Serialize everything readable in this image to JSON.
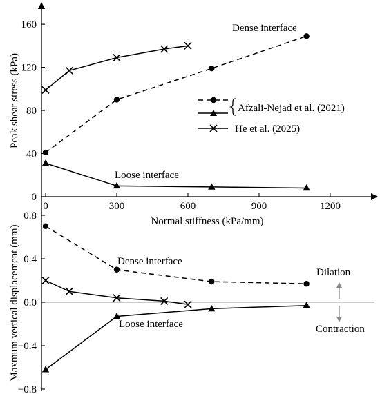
{
  "chart_data": [
    {
      "type": "line",
      "panel": "top",
      "ylabel": "Peak shear stress (kPa)",
      "xlabel": "Normal stiffness (kPa/mm)",
      "xlim": [
        0,
        1400
      ],
      "ylim": [
        0,
        175
      ],
      "xticks": [
        0,
        300,
        600,
        900,
        1200
      ],
      "yticks": [
        0,
        40,
        80,
        120,
        160
      ],
      "series": [
        {
          "key": "dense",
          "marker": "circle",
          "style": "dashed",
          "x": [
            0,
            300,
            700,
            1100
          ],
          "y": [
            41,
            90,
            119,
            149
          ]
        },
        {
          "key": "loose",
          "marker": "triangle",
          "style": "solid",
          "x": [
            0,
            300,
            700,
            1100
          ],
          "y": [
            31,
            10,
            9,
            8
          ]
        },
        {
          "key": "he",
          "marker": "cross",
          "style": "solid",
          "x": [
            0,
            100,
            300,
            500,
            600
          ],
          "y": [
            99,
            117,
            129,
            137,
            140
          ]
        }
      ],
      "annotations": [
        {
          "key": "dense",
          "text": "Dense interface"
        },
        {
          "key": "loose",
          "text": "Loose interface"
        }
      ]
    },
    {
      "type": "line",
      "panel": "bottom",
      "ylabel": "Maxmum vertical displacement (mm)",
      "xlim": [
        0,
        1400
      ],
      "ylim": [
        -0.8,
        0.8
      ],
      "yticks": [
        -0.8,
        -0.4,
        0.0,
        0.4,
        0.8
      ],
      "series": [
        {
          "key": "dense",
          "marker": "circle",
          "style": "dashed",
          "x": [
            0,
            300,
            700,
            1100
          ],
          "y": [
            0.7,
            0.3,
            0.19,
            0.17
          ]
        },
        {
          "key": "loose",
          "marker": "triangle",
          "style": "solid",
          "x": [
            0,
            300,
            700,
            1100
          ],
          "y": [
            -0.62,
            -0.13,
            -0.06,
            -0.03
          ]
        },
        {
          "key": "he",
          "marker": "cross",
          "style": "solid",
          "x": [
            0,
            100,
            300,
            500,
            600
          ],
          "y": [
            0.2,
            0.1,
            0.04,
            0.01,
            -0.02
          ]
        }
      ],
      "annotations": [
        {
          "key": "dense",
          "text": "Dense interface"
        },
        {
          "key": "loose",
          "text": "Loose interface"
        },
        {
          "key": "dilation",
          "text": "Dilation"
        },
        {
          "key": "contraction",
          "text": "Contraction"
        }
      ]
    }
  ],
  "legend": {
    "placement": "center-right",
    "bracket_label": "Afzali-Nejad et al. (2021)",
    "entries": [
      {
        "series": "dense",
        "marker": "circle",
        "style": "dashed"
      },
      {
        "series": "loose",
        "marker": "triangle",
        "style": "solid"
      },
      {
        "series": "he",
        "marker": "cross",
        "style": "solid",
        "label": "He et al. (2025)"
      }
    ]
  },
  "colors": {
    "ink": "#000000",
    "zero_line": "#aaaaaa",
    "arrow": "#888888"
  }
}
